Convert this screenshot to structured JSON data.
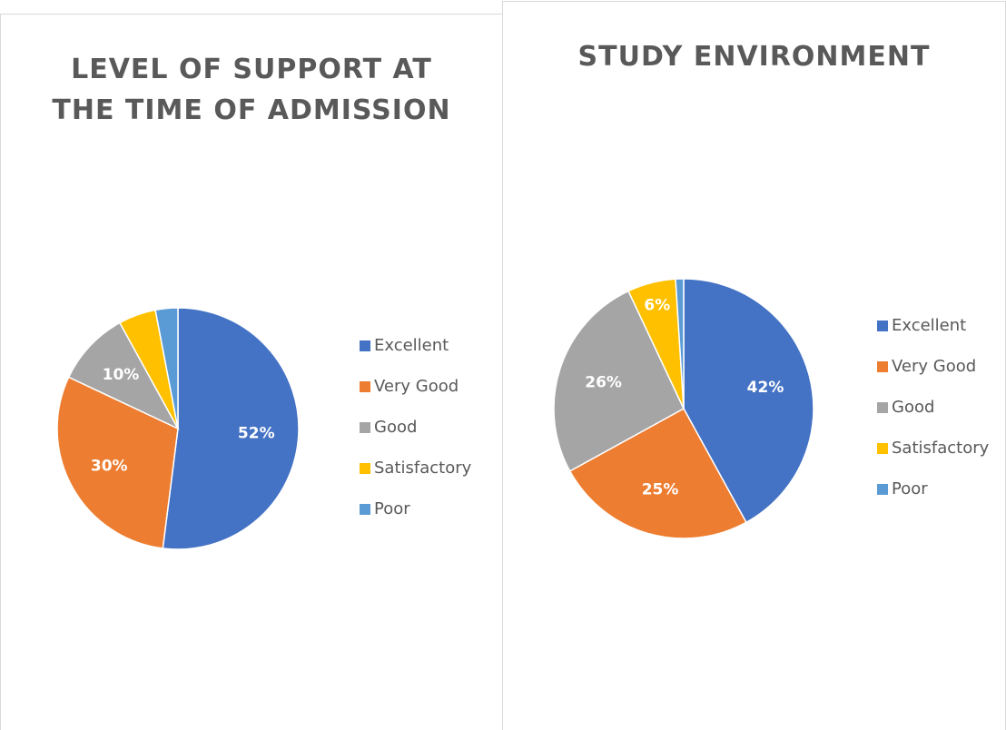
{
  "chart_data": [
    {
      "type": "pie",
      "title": "LEVEL OF SUPPORT AT THE TIME OF ADMISSION",
      "categories": [
        "Excellent",
        "Very Good",
        "Good",
        "Satisfactory",
        "Poor"
      ],
      "values": [
        52,
        30,
        10,
        5,
        3
      ],
      "value_labels": [
        "52%",
        "30%",
        "10%",
        null,
        null
      ],
      "colors": [
        "#4472c4",
        "#ed7d31",
        "#a5a5a5",
        "#ffc000",
        "#5b9bd5"
      ],
      "legend": "right"
    },
    {
      "type": "pie",
      "title": "STUDY ENVIRONMENT",
      "categories": [
        "Excellent",
        "Very Good",
        "Good",
        "Satisfactory",
        "Poor"
      ],
      "values": [
        42,
        25,
        26,
        6,
        1
      ],
      "value_labels": [
        "42%",
        "25%",
        "26%",
        "6%",
        null
      ],
      "colors": [
        "#4472c4",
        "#ed7d31",
        "#a5a5a5",
        "#ffc000",
        "#5b9bd5"
      ],
      "legend": "right"
    }
  ]
}
